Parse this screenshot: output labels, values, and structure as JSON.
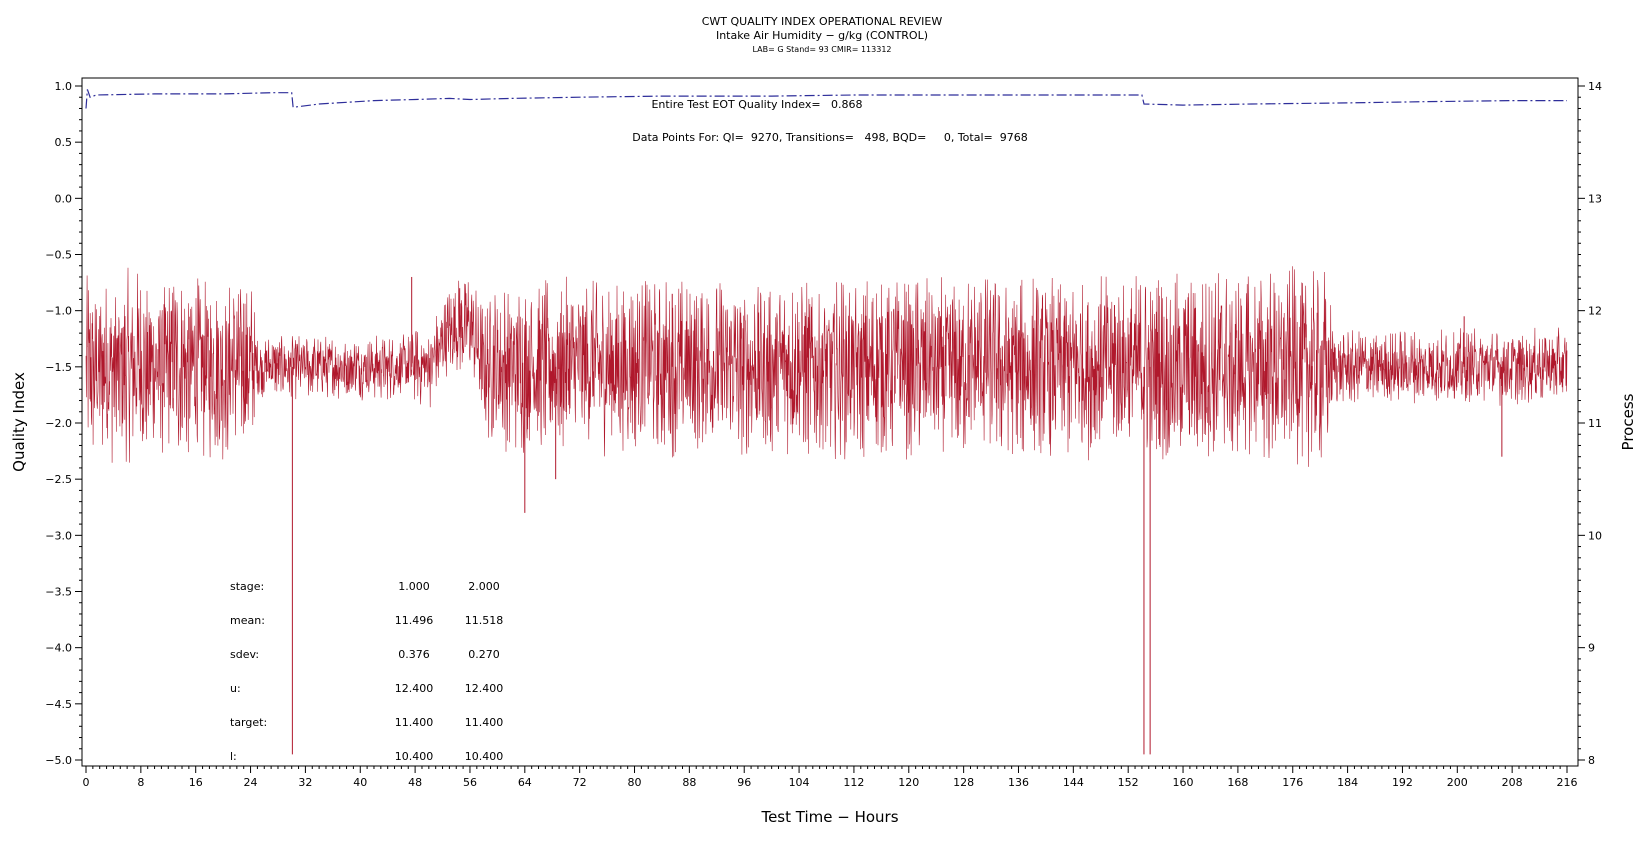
{
  "chart_data": {
    "type": "line",
    "title": "CWT QUALITY INDEX OPERATIONAL REVIEW",
    "subtitle": "Intake Air Humidity − g/kg (CONTROL)",
    "subtitle2": "LAB= G Stand= 93 CMIR= 113312",
    "xlabel": "Test Time − Hours",
    "ylabel_left": "Quality Index",
    "ylabel_right": "Process",
    "xlim": [
      0,
      216
    ],
    "ylim_left": [
      -5.0,
      1.0
    ],
    "ylim_right": [
      8,
      14
    ],
    "x_ticks": [
      0,
      8,
      16,
      24,
      32,
      40,
      48,
      56,
      64,
      72,
      80,
      88,
      96,
      104,
      112,
      120,
      128,
      136,
      144,
      152,
      160,
      168,
      176,
      184,
      192,
      200,
      208,
      216
    ],
    "x_tick_labels": [
      "0",
      "8",
      "16",
      "24",
      "32",
      "40",
      "48",
      "56",
      "64",
      "72",
      "80",
      "88",
      "96",
      "104",
      "112",
      "120",
      "128",
      "136",
      "144",
      "152",
      "160",
      "168",
      "176",
      "184",
      "192",
      "200",
      "208",
      "216"
    ],
    "y_left_ticks": [
      1.0,
      0.5,
      0.0,
      -0.5,
      -1.0,
      -1.5,
      -2.0,
      -2.5,
      -3.0,
      -3.5,
      -4.0,
      -4.5,
      -5.0
    ],
    "y_left_tick_labels": [
      "1.0",
      "0.5",
      "0.0",
      "−0.5",
      "−1.0",
      "−1.5",
      "−2.0",
      "−2.5",
      "−3.0",
      "−3.5",
      "−4.0",
      "−4.5",
      "−5.0"
    ],
    "y_right_ticks": [
      8,
      9,
      10,
      11,
      12,
      13,
      14
    ],
    "y_right_tick_labels": [
      "8",
      "9",
      "10",
      "11",
      "12",
      "13",
      "14"
    ],
    "annotations": [
      "Entire Test EOT Quality Index=   0.868",
      "Data Points For: QI=  9270, Transitions=   498, BQD=     0, Total=  9768"
    ],
    "stats_table": {
      "header": [
        "stage:",
        "1.000",
        "2.000"
      ],
      "rows": [
        [
          "mean:",
          "11.496",
          "11.518"
        ],
        [
          "sdev:",
          "0.376",
          "0.270"
        ],
        [
          "u:",
          "12.400",
          "12.400"
        ],
        [
          "target:",
          "11.400",
          "11.400"
        ],
        [
          "l:",
          "10.400",
          "10.400"
        ]
      ]
    },
    "series": [
      {
        "axis": "left",
        "color": "#2e2e9a",
        "style": "dash",
        "points": [
          [
            0.0,
            0.8
          ],
          [
            0.2,
            0.97
          ],
          [
            0.6,
            0.9
          ],
          [
            1.5,
            0.92
          ],
          [
            10,
            0.93
          ],
          [
            20,
            0.93
          ],
          [
            27,
            0.94
          ],
          [
            30.0,
            0.94
          ],
          [
            30.2,
            0.81
          ],
          [
            34,
            0.84
          ],
          [
            42,
            0.87
          ],
          [
            48,
            0.88
          ],
          [
            53,
            0.89
          ],
          [
            56,
            0.88
          ],
          [
            62,
            0.89
          ],
          [
            72,
            0.9
          ],
          [
            84,
            0.91
          ],
          [
            100,
            0.91
          ],
          [
            112,
            0.92
          ],
          [
            130,
            0.92
          ],
          [
            145,
            0.92
          ],
          [
            154.0,
            0.92
          ],
          [
            154.3,
            0.84
          ],
          [
            160,
            0.83
          ],
          [
            170,
            0.84
          ],
          [
            184,
            0.85
          ],
          [
            195,
            0.86
          ],
          [
            208,
            0.87
          ],
          [
            216,
            0.87
          ]
        ]
      },
      {
        "axis": "right",
        "color": "#b0182c",
        "style": "solid",
        "center": [
          [
            0,
            11.5
          ],
          [
            30,
            11.5
          ],
          [
            46,
            11.5
          ],
          [
            50,
            11.5
          ],
          [
            53,
            11.8
          ],
          [
            56,
            11.9
          ],
          [
            58,
            11.5
          ],
          [
            216,
            11.5
          ]
        ],
        "spread": [
          [
            0,
            0.9
          ],
          [
            24,
            0.85
          ],
          [
            25,
            0.3
          ],
          [
            43,
            0.3
          ],
          [
            46,
            0.3
          ],
          [
            48,
            0.35
          ],
          [
            57,
            0.5
          ],
          [
            60,
            0.8
          ],
          [
            154,
            0.85
          ],
          [
            155,
            0.9
          ],
          [
            181,
            0.9
          ],
          [
            182,
            0.35
          ],
          [
            216,
            0.35
          ]
        ],
        "spikes": [
          [
            30.1,
            8.05
          ],
          [
            47.5,
            12.3
          ],
          [
            54.5,
            12.2
          ],
          [
            64.0,
            10.2
          ],
          [
            68.5,
            10.5
          ],
          [
            85.5,
            12.15
          ],
          [
            150,
            12.05
          ],
          [
            154.3,
            8.05
          ],
          [
            155.2,
            8.05
          ],
          [
            201,
            11.95
          ],
          [
            206.5,
            10.7
          ]
        ]
      }
    ]
  }
}
